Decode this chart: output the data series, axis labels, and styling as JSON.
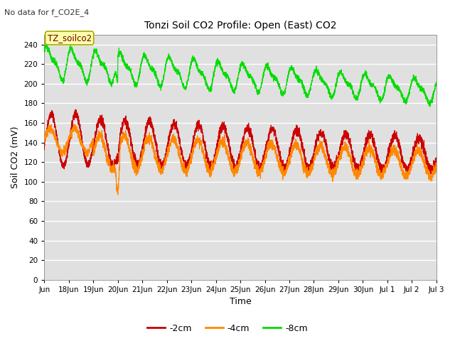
{
  "title": "Tonzi Soil CO2 Profile: Open (East) CO2",
  "subtitle": "No data for f_CO2E_4",
  "ylabel": "Soil CO2 (mV)",
  "xlabel": "Time",
  "annotation": "TZ_soilco2",
  "ylim": [
    0,
    250
  ],
  "yticks": [
    0,
    20,
    40,
    60,
    80,
    100,
    120,
    140,
    160,
    180,
    200,
    220,
    240
  ],
  "bg_color": "#e0e0e0",
  "grid_color": "#ffffff",
  "colors": {
    "2cm": "#cc0000",
    "4cm": "#ff8800",
    "8cm": "#00dd00"
  },
  "legend": [
    {
      "label": "-2cm",
      "color": "#cc0000"
    },
    {
      "label": "-4cm",
      "color": "#ff8800"
    },
    {
      "label": "-8cm",
      "color": "#00dd00"
    }
  ],
  "n_points": 3840
}
